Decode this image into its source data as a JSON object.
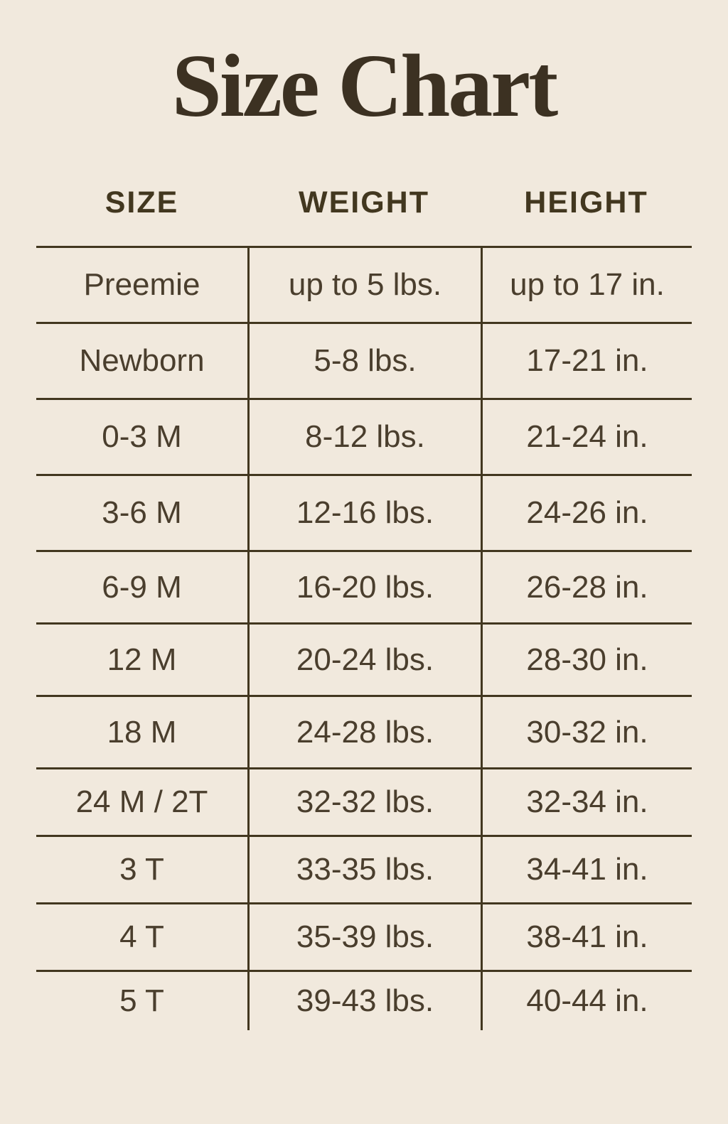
{
  "page": {
    "title": "Size Chart"
  },
  "chart_data": {
    "type": "table",
    "title": "Size Chart",
    "columns": [
      "SIZE",
      "WEIGHT",
      "HEIGHT"
    ],
    "rows": [
      [
        "Preemie",
        "up to 5 lbs.",
        "up to 17 in."
      ],
      [
        "Newborn",
        "5-8 lbs.",
        "17-21 in."
      ],
      [
        "0-3 M",
        "8-12 lbs.",
        "21-24 in."
      ],
      [
        "3-6 M",
        "12-16 lbs.",
        "24-26 in."
      ],
      [
        "6-9 M",
        "16-20 lbs.",
        "26-28 in."
      ],
      [
        "12 M",
        "20-24 lbs.",
        "28-30 in."
      ],
      [
        "18 M",
        "24-28 lbs.",
        "30-32 in."
      ],
      [
        "24 M / 2T",
        "32-32 lbs.",
        "32-34 in."
      ],
      [
        "3 T",
        "33-35 lbs.",
        "34-41 in."
      ],
      [
        "4 T",
        "35-39 lbs.",
        "38-41 in."
      ],
      [
        "5 T",
        "39-43 lbs.",
        "40-44 in."
      ]
    ]
  },
  "colors": {
    "background": "#f1e9dd",
    "text": "#4a3e2d",
    "line": "#42371f",
    "title_text": "#3c3122"
  }
}
